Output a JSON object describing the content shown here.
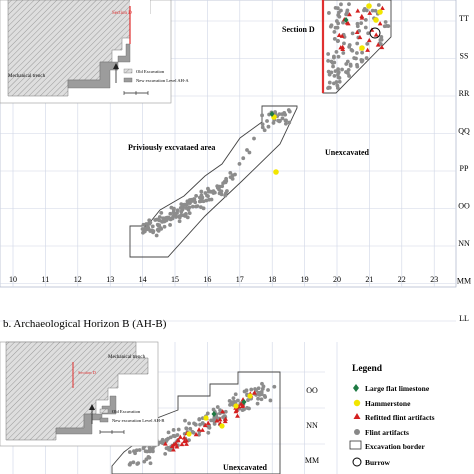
{
  "panel_a": {
    "section_label": "Section D",
    "inset": {
      "section_label": "Section D",
      "trench_label": "Mechanical trench",
      "legend": [
        {
          "label": "Old Excavation",
          "swatch": "hatch"
        },
        {
          "label": "New excavation Level AH-A",
          "swatch": "gray"
        }
      ]
    },
    "area_labels": {
      "previous": "Priviously excvataed area",
      "unexcavated": "Unexcavated"
    },
    "x_ticks": [
      "10",
      "11",
      "12",
      "13",
      "14",
      "15",
      "16",
      "17",
      "18",
      "19",
      "20",
      "21",
      "22",
      "23"
    ],
    "y_ticks": [
      "TT",
      "SS",
      "RR",
      "QQ",
      "PP",
      "OO",
      "NN",
      "MM",
      "LL"
    ]
  },
  "panel_b": {
    "title": "b. Archaeological Horizon B (AH-B)",
    "inset": {
      "section_label": "Section D",
      "trench_label": "Mechanical trench",
      "legend": [
        {
          "label": "Old Excavation",
          "swatch": "hatch"
        },
        {
          "label": "New excavation Level AH-B",
          "swatch": "gray"
        }
      ]
    },
    "unexcavated": "Unexcavated",
    "y_ticks": [
      "OO",
      "NN",
      "MM"
    ]
  },
  "legend": {
    "title": "Legend",
    "items": [
      {
        "label": "Large flat limestone",
        "color": "#1e7a43",
        "shape": "diamond"
      },
      {
        "label": "Hammerstone",
        "color": "#f2e600",
        "shape": "circle"
      },
      {
        "label": "Refitted flint artifacts",
        "color": "#d42020",
        "shape": "triangle"
      },
      {
        "label": "Flint artifacts",
        "color": "#888888",
        "shape": "dot"
      },
      {
        "label": "Excavation border",
        "color": "#333333",
        "shape": "rect"
      },
      {
        "label": "Burrow",
        "color": "#000000",
        "shape": "ring"
      }
    ]
  },
  "colors": {
    "flint": "#8c8c8c",
    "refit": "#d42020",
    "hammer": "#f2e600",
    "limestone": "#1e7a43",
    "section_line": "#e03030",
    "grid": "#cfd6e6"
  }
}
